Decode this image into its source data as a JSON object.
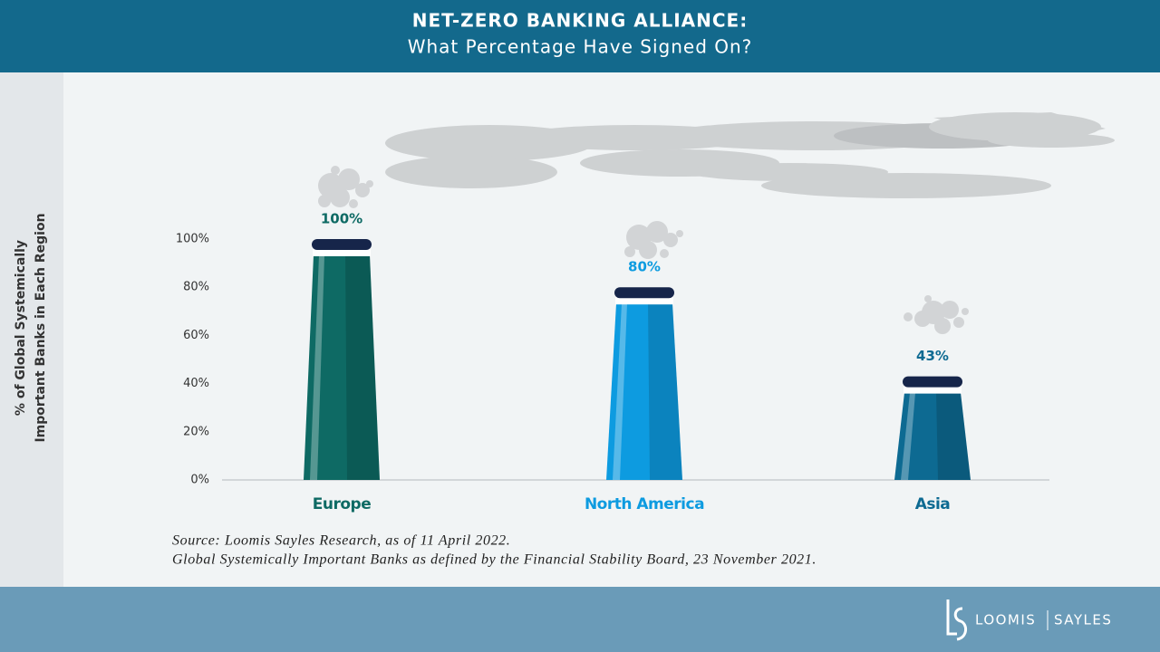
{
  "chart_data": {
    "type": "bar",
    "title": "NET-ZERO BANKING ALLIANCE:",
    "subtitle": "What Percentage Have Signed On?",
    "y_label": [
      "% of Global Systemically",
      "Important Banks in Each Region"
    ],
    "categories": [
      "Europe",
      "North America",
      "Asia"
    ],
    "values": [
      100,
      80,
      43
    ],
    "value_labels": [
      "100%",
      "80%",
      "43%"
    ],
    "colors": [
      "#0e6a64",
      "#0d9be0",
      "#0d6a92"
    ],
    "ylim": [
      0,
      100
    ],
    "yticks": [
      {
        "value": 0,
        "label": "0%"
      },
      {
        "value": 20,
        "label": "20%"
      },
      {
        "value": 40,
        "label": "40%"
      },
      {
        "value": 60,
        "label": "60%"
      },
      {
        "value": 80,
        "label": "80%"
      },
      {
        "value": 100,
        "label": "100%"
      }
    ],
    "notes": [
      "Source: Loomis Sayles Research, as of 11 April 2022.",
      "Global Systemically Important Banks as defined by the Financial Stability Board, 23 November 2021."
    ]
  },
  "brand": {
    "left": "LOOMIS",
    "right": "SAYLES"
  }
}
